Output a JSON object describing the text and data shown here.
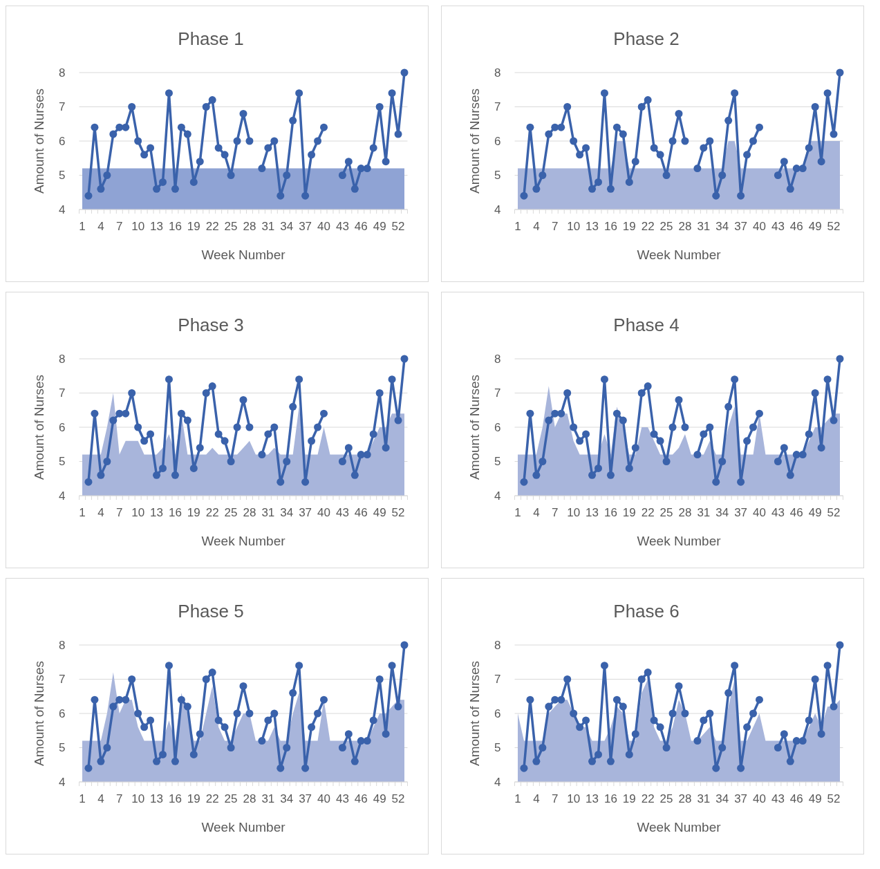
{
  "chart_data": [
    {
      "type": "line",
      "title": "Phase 1",
      "xlabel": "Week Number",
      "ylabel": "Amount of Nurses",
      "categories": [
        "1",
        null,
        null,
        "4",
        null,
        null,
        "7",
        null,
        null,
        "10",
        null,
        null,
        "13",
        null,
        null,
        "16",
        null,
        null,
        "19",
        null,
        null,
        "22",
        null,
        null,
        "25",
        null,
        null,
        "28",
        null,
        null,
        "31",
        null,
        null,
        "34",
        null,
        null,
        "37",
        null,
        null,
        "40",
        null,
        null,
        "43",
        null,
        null,
        "46",
        null,
        null,
        "49",
        null,
        null,
        "52",
        null
      ],
      "ylim": [
        4,
        8
      ],
      "yticks": [
        4,
        5,
        6,
        7,
        8
      ],
      "grid": "y",
      "series": [
        {
          "type": "area",
          "color": "#8fa3d4",
          "values": [
            5.2,
            5.2,
            5.2,
            5.2,
            5.2,
            5.2,
            5.2,
            5.2,
            5.2,
            5.2,
            5.2,
            5.2,
            5.2,
            5.2,
            5.2,
            5.2,
            5.2,
            5.2,
            5.2,
            5.2,
            5.2,
            5.2,
            5.2,
            5.2,
            5.2,
            5.2,
            5.2,
            5.2,
            5.2,
            5.2,
            5.2,
            5.2,
            5.2,
            5.2,
            5.2,
            5.2,
            5.2,
            5.2,
            5.2,
            5.2,
            5.2,
            5.2,
            5.2,
            5.2,
            5.2,
            5.2,
            5.2,
            5.2,
            5.2,
            5.2,
            5.2,
            5.2,
            5.2
          ]
        },
        {
          "type": "line",
          "color": "#3a62ab",
          "marker": "circle",
          "values": [
            null,
            4.4,
            6.4,
            4.6,
            5.0,
            6.2,
            6.4,
            6.4,
            7.0,
            6.0,
            5.6,
            5.8,
            4.6,
            4.8,
            7.4,
            4.6,
            6.4,
            6.2,
            4.8,
            5.4,
            7.0,
            7.2,
            5.8,
            5.6,
            5.0,
            6.0,
            6.8,
            6.0,
            null,
            5.2,
            5.8,
            6.0,
            4.4,
            5.0,
            6.6,
            7.4,
            4.4,
            5.6,
            6.0,
            6.4,
            null,
            null,
            5.0,
            5.4,
            4.6,
            5.2,
            5.2,
            5.8,
            7.0,
            5.4,
            7.4,
            6.2,
            8.0
          ]
        }
      ]
    },
    {
      "type": "line",
      "title": "Phase 2",
      "xlabel": "Week Number",
      "ylabel": "Amount of Nurses",
      "categories": [
        "1",
        null,
        null,
        "4",
        null,
        null,
        "7",
        null,
        null,
        "10",
        null,
        null,
        "13",
        null,
        null,
        "16",
        null,
        null,
        "19",
        null,
        null,
        "22",
        null,
        null,
        "25",
        null,
        null,
        "28",
        null,
        null,
        "31",
        null,
        null,
        "34",
        null,
        null,
        "37",
        null,
        null,
        "40",
        null,
        null,
        "43",
        null,
        null,
        "46",
        null,
        null,
        "49",
        null,
        null,
        "52",
        null
      ],
      "ylim": [
        4,
        8
      ],
      "yticks": [
        4,
        5,
        6,
        7,
        8
      ],
      "grid": "y",
      "series": [
        {
          "type": "area",
          "color": "#a8b5db",
          "values": [
            5.2,
            5.2,
            5.2,
            5.2,
            5.2,
            5.2,
            5.2,
            5.2,
            5.2,
            5.2,
            5.2,
            5.2,
            5.2,
            5.2,
            5.2,
            5.2,
            6.0,
            6.0,
            5.2,
            5.2,
            5.2,
            5.2,
            5.2,
            5.2,
            5.2,
            5.2,
            5.2,
            5.2,
            5.2,
            5.2,
            5.2,
            5.2,
            5.2,
            5.2,
            6.0,
            6.0,
            5.2,
            5.2,
            5.2,
            5.2,
            5.2,
            5.2,
            5.2,
            5.2,
            5.2,
            5.2,
            5.2,
            6.0,
            6.0,
            6.0,
            6.0,
            6.0,
            6.0
          ]
        },
        {
          "type": "line",
          "color": "#3a62ab",
          "marker": "circle",
          "values": [
            null,
            4.4,
            6.4,
            4.6,
            5.0,
            6.2,
            6.4,
            6.4,
            7.0,
            6.0,
            5.6,
            5.8,
            4.6,
            4.8,
            7.4,
            4.6,
            6.4,
            6.2,
            4.8,
            5.4,
            7.0,
            7.2,
            5.8,
            5.6,
            5.0,
            6.0,
            6.8,
            6.0,
            null,
            5.2,
            5.8,
            6.0,
            4.4,
            5.0,
            6.6,
            7.4,
            4.4,
            5.6,
            6.0,
            6.4,
            null,
            null,
            5.0,
            5.4,
            4.6,
            5.2,
            5.2,
            5.8,
            7.0,
            5.4,
            7.4,
            6.2,
            8.0
          ]
        }
      ]
    },
    {
      "type": "line",
      "title": "Phase 3",
      "xlabel": "Week Number",
      "ylabel": "Amount of Nurses",
      "categories": [
        "1",
        null,
        null,
        "4",
        null,
        null,
        "7",
        null,
        null,
        "10",
        null,
        null,
        "13",
        null,
        null,
        "16",
        null,
        null,
        "19",
        null,
        null,
        "22",
        null,
        null,
        "25",
        null,
        null,
        "28",
        null,
        null,
        "31",
        null,
        null,
        "34",
        null,
        null,
        "37",
        null,
        null,
        "40",
        null,
        null,
        "43",
        null,
        null,
        "46",
        null,
        null,
        "49",
        null,
        null,
        "52",
        null
      ],
      "ylim": [
        4,
        8
      ],
      "yticks": [
        4,
        5,
        6,
        7,
        8
      ],
      "grid": "y",
      "series": [
        {
          "type": "area",
          "color": "#a8b5db",
          "values": [
            5.2,
            5.2,
            5.2,
            5.2,
            6.0,
            7.0,
            5.2,
            5.6,
            5.6,
            5.6,
            5.2,
            5.2,
            5.2,
            5.4,
            5.8,
            5.2,
            6.4,
            5.2,
            5.2,
            5.2,
            5.2,
            5.4,
            5.2,
            5.2,
            5.2,
            5.2,
            5.4,
            5.6,
            5.2,
            5.2,
            5.2,
            5.4,
            5.2,
            5.2,
            5.2,
            6.6,
            5.2,
            5.2,
            5.2,
            6.0,
            5.2,
            5.2,
            5.2,
            5.2,
            5.2,
            5.2,
            5.2,
            5.6,
            6.0,
            6.0,
            6.4,
            6.4,
            6.4
          ]
        },
        {
          "type": "line",
          "color": "#3a62ab",
          "marker": "circle",
          "values": [
            null,
            4.4,
            6.4,
            4.6,
            5.0,
            6.2,
            6.4,
            6.4,
            7.0,
            6.0,
            5.6,
            5.8,
            4.6,
            4.8,
            7.4,
            4.6,
            6.4,
            6.2,
            4.8,
            5.4,
            7.0,
            7.2,
            5.8,
            5.6,
            5.0,
            6.0,
            6.8,
            6.0,
            null,
            5.2,
            5.8,
            6.0,
            4.4,
            5.0,
            6.6,
            7.4,
            4.4,
            5.6,
            6.0,
            6.4,
            null,
            null,
            5.0,
            5.4,
            4.6,
            5.2,
            5.2,
            5.8,
            7.0,
            5.4,
            7.4,
            6.2,
            8.0
          ]
        }
      ]
    },
    {
      "type": "line",
      "title": "Phase 4",
      "xlabel": "Week Number",
      "ylabel": "Amount of Nurses",
      "categories": [
        "1",
        null,
        null,
        "4",
        null,
        null,
        "7",
        null,
        null,
        "10",
        null,
        null,
        "13",
        null,
        null,
        "16",
        null,
        null,
        "19",
        null,
        null,
        "22",
        null,
        null,
        "25",
        null,
        null,
        "28",
        null,
        null,
        "31",
        null,
        null,
        "34",
        null,
        null,
        "37",
        null,
        null,
        "40",
        null,
        null,
        "43",
        null,
        null,
        "46",
        null,
        null,
        "49",
        null,
        null,
        "52",
        null
      ],
      "ylim": [
        4,
        8
      ],
      "yticks": [
        4,
        5,
        6,
        7,
        8
      ],
      "grid": "y",
      "series": [
        {
          "type": "area",
          "color": "#a8b5db",
          "values": [
            5.2,
            5.2,
            5.2,
            5.2,
            6.0,
            7.2,
            6.0,
            6.4,
            6.4,
            5.6,
            5.2,
            5.2,
            5.2,
            5.2,
            5.8,
            5.2,
            6.6,
            6.0,
            5.2,
            5.2,
            6.0,
            6.0,
            5.6,
            5.2,
            5.2,
            5.2,
            5.4,
            5.8,
            5.2,
            5.2,
            5.2,
            5.6,
            5.2,
            5.2,
            6.0,
            6.6,
            5.2,
            5.2,
            5.2,
            6.4,
            5.2,
            5.2,
            5.2,
            5.2,
            5.2,
            5.2,
            5.2,
            5.6,
            6.0,
            6.0,
            6.2,
            6.4,
            6.4
          ]
        },
        {
          "type": "line",
          "color": "#3a62ab",
          "marker": "circle",
          "values": [
            null,
            4.4,
            6.4,
            4.6,
            5.0,
            6.2,
            6.4,
            6.4,
            7.0,
            6.0,
            5.6,
            5.8,
            4.6,
            4.8,
            7.4,
            4.6,
            6.4,
            6.2,
            4.8,
            5.4,
            7.0,
            7.2,
            5.8,
            5.6,
            5.0,
            6.0,
            6.8,
            6.0,
            null,
            5.2,
            5.8,
            6.0,
            4.4,
            5.0,
            6.6,
            7.4,
            4.4,
            5.6,
            6.0,
            6.4,
            null,
            null,
            5.0,
            5.4,
            4.6,
            5.2,
            5.2,
            5.8,
            7.0,
            5.4,
            7.4,
            6.2,
            8.0
          ]
        }
      ]
    },
    {
      "type": "line",
      "title": "Phase 5",
      "xlabel": "Week Number",
      "ylabel": "Amount of Nurses",
      "categories": [
        "1",
        null,
        null,
        "4",
        null,
        null,
        "7",
        null,
        null,
        "10",
        null,
        null,
        "13",
        null,
        null,
        "16",
        null,
        null,
        "19",
        null,
        null,
        "22",
        null,
        null,
        "25",
        null,
        null,
        "28",
        null,
        null,
        "31",
        null,
        null,
        "34",
        null,
        null,
        "37",
        null,
        null,
        "40",
        null,
        null,
        "43",
        null,
        null,
        "46",
        null,
        null,
        "49",
        null,
        null,
        "52",
        null
      ],
      "ylim": [
        4,
        8
      ],
      "yticks": [
        4,
        5,
        6,
        7,
        8
      ],
      "grid": "y",
      "series": [
        {
          "type": "area",
          "color": "#a8b5db",
          "values": [
            5.2,
            5.2,
            5.2,
            5.2,
            6.0,
            7.2,
            6.0,
            6.4,
            6.4,
            5.6,
            5.2,
            5.2,
            5.2,
            5.2,
            5.8,
            5.2,
            6.6,
            6.0,
            5.2,
            5.2,
            6.0,
            6.8,
            5.6,
            5.2,
            5.2,
            5.6,
            6.0,
            6.0,
            5.2,
            5.2,
            5.2,
            5.6,
            5.2,
            5.2,
            6.0,
            6.6,
            5.2,
            5.2,
            5.2,
            6.4,
            5.2,
            5.2,
            5.2,
            5.2,
            5.2,
            5.2,
            5.2,
            5.6,
            6.0,
            6.0,
            6.2,
            6.4,
            6.4
          ]
        },
        {
          "type": "line",
          "color": "#3a62ab",
          "marker": "circle",
          "values": [
            null,
            4.4,
            6.4,
            4.6,
            5.0,
            6.2,
            6.4,
            6.4,
            7.0,
            6.0,
            5.6,
            5.8,
            4.6,
            4.8,
            7.4,
            4.6,
            6.4,
            6.2,
            4.8,
            5.4,
            7.0,
            7.2,
            5.8,
            5.6,
            5.0,
            6.0,
            6.8,
            6.0,
            null,
            5.2,
            5.8,
            6.0,
            4.4,
            5.0,
            6.6,
            7.4,
            4.4,
            5.6,
            6.0,
            6.4,
            null,
            null,
            5.0,
            5.4,
            4.6,
            5.2,
            5.2,
            5.8,
            7.0,
            5.4,
            7.4,
            6.2,
            8.0
          ]
        }
      ]
    },
    {
      "type": "line",
      "title": "Phase 6",
      "xlabel": "Week Number",
      "ylabel": "Amount of Nurses",
      "categories": [
        "1",
        null,
        null,
        "4",
        null,
        null,
        "7",
        null,
        null,
        "10",
        null,
        null,
        "13",
        null,
        null,
        "16",
        null,
        null,
        "19",
        null,
        null,
        "22",
        null,
        null,
        "25",
        null,
        null,
        "28",
        null,
        null,
        "31",
        null,
        null,
        "34",
        null,
        null,
        "37",
        null,
        null,
        "40",
        null,
        null,
        "43",
        null,
        null,
        "46",
        null,
        null,
        "49",
        null,
        null,
        "52",
        null
      ],
      "ylim": [
        4,
        8
      ],
      "yticks": [
        4,
        5,
        6,
        7,
        8
      ],
      "grid": "y",
      "series": [
        {
          "type": "area",
          "color": "#a8b5db",
          "values": [
            6.0,
            5.2,
            5.2,
            5.2,
            5.2,
            6.0,
            6.2,
            6.4,
            6.4,
            6.0,
            5.6,
            5.6,
            5.2,
            5.2,
            5.2,
            5.6,
            6.2,
            6.0,
            5.2,
            5.2,
            6.6,
            7.0,
            5.6,
            5.2,
            5.2,
            5.6,
            6.4,
            6.0,
            5.2,
            5.2,
            5.4,
            5.6,
            5.2,
            5.2,
            6.2,
            7.0,
            5.2,
            5.2,
            5.6,
            6.0,
            5.2,
            5.2,
            5.2,
            5.2,
            5.2,
            5.2,
            5.2,
            5.6,
            6.0,
            5.6,
            6.2,
            6.2,
            6.4
          ]
        },
        {
          "type": "line",
          "color": "#3a62ab",
          "marker": "circle",
          "values": [
            null,
            4.4,
            6.4,
            4.6,
            5.0,
            6.2,
            6.4,
            6.4,
            7.0,
            6.0,
            5.6,
            5.8,
            4.6,
            4.8,
            7.4,
            4.6,
            6.4,
            6.2,
            4.8,
            5.4,
            7.0,
            7.2,
            5.8,
            5.6,
            5.0,
            6.0,
            6.8,
            6.0,
            null,
            5.2,
            5.8,
            6.0,
            4.4,
            5.0,
            6.6,
            7.4,
            4.4,
            5.6,
            6.0,
            6.4,
            null,
            null,
            5.0,
            5.4,
            4.6,
            5.2,
            5.2,
            5.8,
            7.0,
            5.4,
            7.4,
            6.2,
            8.0
          ]
        }
      ]
    }
  ]
}
